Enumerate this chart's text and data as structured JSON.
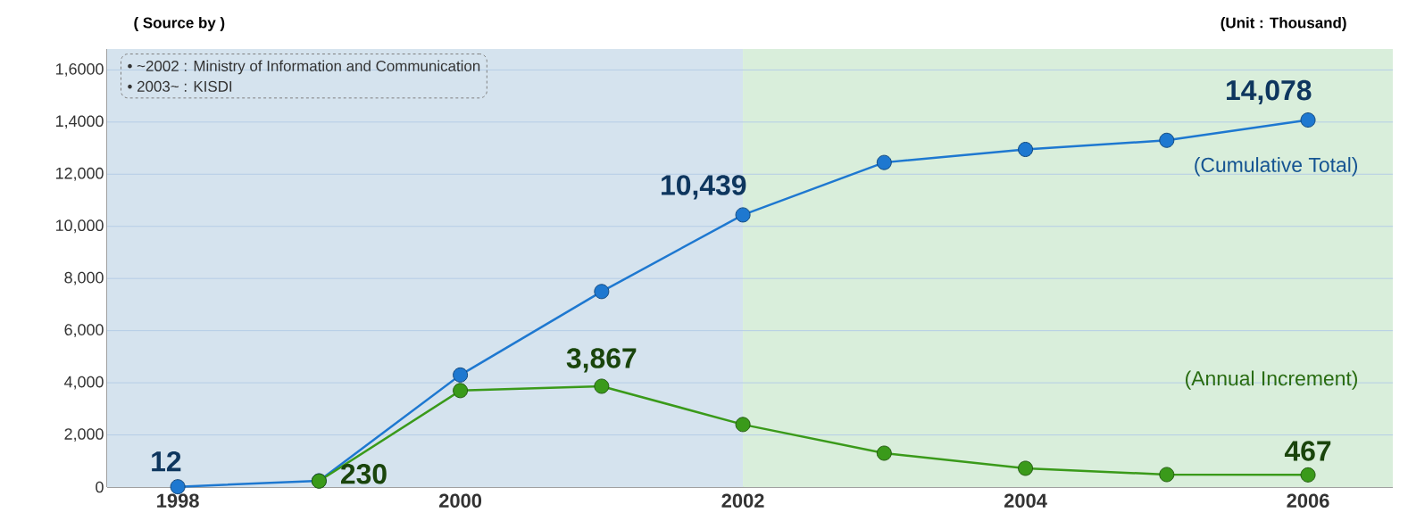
{
  "chart_data": {
    "type": "line",
    "x": [
      1998,
      1999,
      2000,
      2001,
      2002,
      2003,
      2004,
      2005,
      2006
    ],
    "series": [
      {
        "name": "(Cumulative Total)",
        "color": "#1e78d0",
        "values": [
          12,
          240,
          4300,
          7500,
          10439,
          12450,
          12950,
          13300,
          14078
        ],
        "value_labels": [
          "12",
          null,
          null,
          null,
          "10,439",
          null,
          null,
          null,
          "14,078"
        ]
      },
      {
        "name": "(Annual Increment)",
        "color": "#3a9a1a",
        "values": [
          null,
          230,
          3700,
          3867,
          2400,
          1300,
          720,
          480,
          467
        ],
        "value_labels": [
          null,
          "230",
          null,
          "3,867",
          null,
          null,
          null,
          null,
          "467"
        ]
      }
    ],
    "xlim": [
      1997.5,
      2006.6
    ],
    "xticks": [
      1998,
      2000,
      2002,
      2004,
      2006
    ],
    "ylim": [
      0,
      16800
    ],
    "yticks": [
      0,
      {
        "value": 2000,
        "label": "2,000"
      },
      {
        "value": 4000,
        "label": "4,000"
      },
      {
        "value": 6000,
        "label": "6,000"
      },
      {
        "value": 8000,
        "label": "8,000"
      },
      {
        "value": 10000,
        "label": "10,000"
      },
      {
        "value": 12000,
        "label": "12,000"
      },
      {
        "value": 14000,
        "label": "1,4000"
      },
      {
        "value": 16000,
        "label": "1,6000"
      }
    ],
    "grid": "y",
    "marker": "circle",
    "line_style": "solid",
    "bands": [
      {
        "axis": "x",
        "from": 1997.5,
        "to": 2002,
        "color": "#d5e3ee"
      },
      {
        "axis": "x",
        "from": 2002,
        "to": 2006.6,
        "color": "#d9eedb"
      }
    ],
    "annotations": [
      "( Source by )",
      "• ~2002 : Ministry of Information and Communication",
      "• 2003~ : KISDI",
      "(Unit : Thousand)"
    ]
  }
}
